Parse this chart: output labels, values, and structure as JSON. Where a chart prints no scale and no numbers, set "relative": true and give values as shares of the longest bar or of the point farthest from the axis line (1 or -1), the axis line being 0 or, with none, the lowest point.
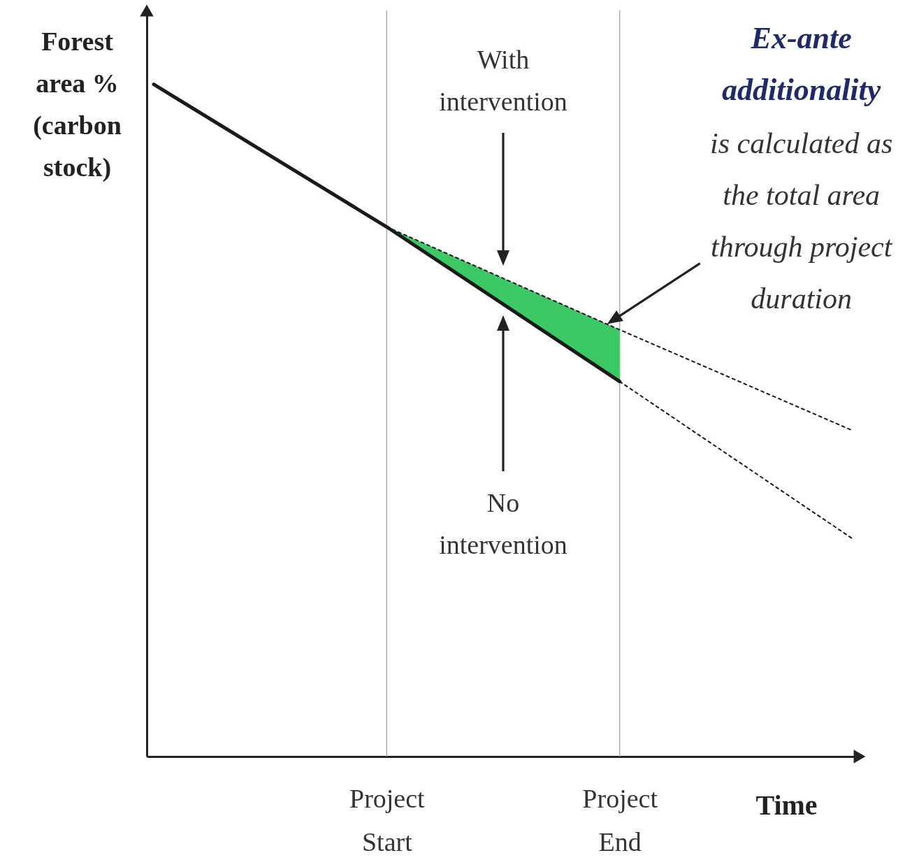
{
  "chart_data": {
    "type": "line",
    "relative": true,
    "xlabel": "Time",
    "ylabel": "Forest area % (carbon stock)",
    "categories": [
      null,
      "Project Start",
      "Project End",
      null
    ],
    "series": [
      {
        "type": "area",
        "color": "#3cc864",
        "values": [
          null,
          0.788,
          0.635,
          null
        ]
      },
      {
        "color": "#1a1a1a",
        "line_style": "solid",
        "values": [
          1,
          0.788,
          0.558,
          null
        ]
      },
      {
        "color": "#1a1a1a",
        "line_style": "dotted",
        "values": [
          null,
          null,
          0.558,
          0.324
        ]
      },
      {
        "color": "#1a1a1a",
        "line_style": "dotted",
        "values": [
          null,
          0.788,
          0.635,
          0.485
        ]
      }
    ],
    "ref_lines": [
      {
        "axis": "x",
        "value": "Project Start",
        "color": "#aaaaaa"
      },
      {
        "axis": "x",
        "value": "Project End",
        "color": "#aaaaaa"
      }
    ],
    "annotations": [
      "With intervention",
      "No intervention",
      "Ex-ante additionality",
      "is calculated as the total area through project duration"
    ]
  }
}
